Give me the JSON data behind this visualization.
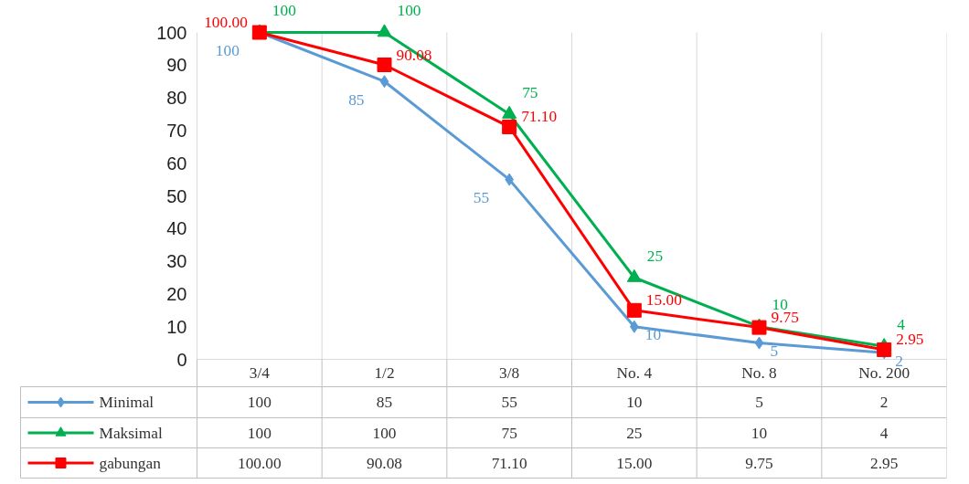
{
  "chart_data": {
    "type": "line",
    "categories": [
      "3/4",
      "1/2",
      "3/8",
      "No. 4",
      "No. 8",
      "No. 200"
    ],
    "ylim": [
      0,
      100
    ],
    "yticks": [
      0,
      10,
      20,
      30,
      40,
      50,
      60,
      70,
      80,
      90,
      100
    ],
    "grid": "x",
    "legend": "bottom",
    "line_style": "solid",
    "data_labels": true,
    "series": [
      {
        "name": "Minimal",
        "color": "#5b9bd5",
        "marker": "diamond",
        "values": [
          100,
          85,
          55,
          10,
          5,
          2
        ],
        "value_labels": [
          "100",
          "85",
          "55",
          "10",
          "5",
          "2"
        ]
      },
      {
        "name": "Maksimal",
        "color": "#00b050",
        "marker": "triangle",
        "values": [
          100,
          100,
          75,
          25,
          10,
          4
        ],
        "value_labels": [
          "100",
          "100",
          "75",
          "25",
          "10",
          "4"
        ]
      },
      {
        "name": "gabungan",
        "color": "#ff0000",
        "marker": "square",
        "values": [
          100.0,
          90.08,
          71.1,
          15.0,
          9.75,
          2.95
        ],
        "value_labels": [
          "100.00",
          "90.08",
          "71.10",
          "15.00",
          "9.75",
          "2.95"
        ]
      }
    ]
  }
}
